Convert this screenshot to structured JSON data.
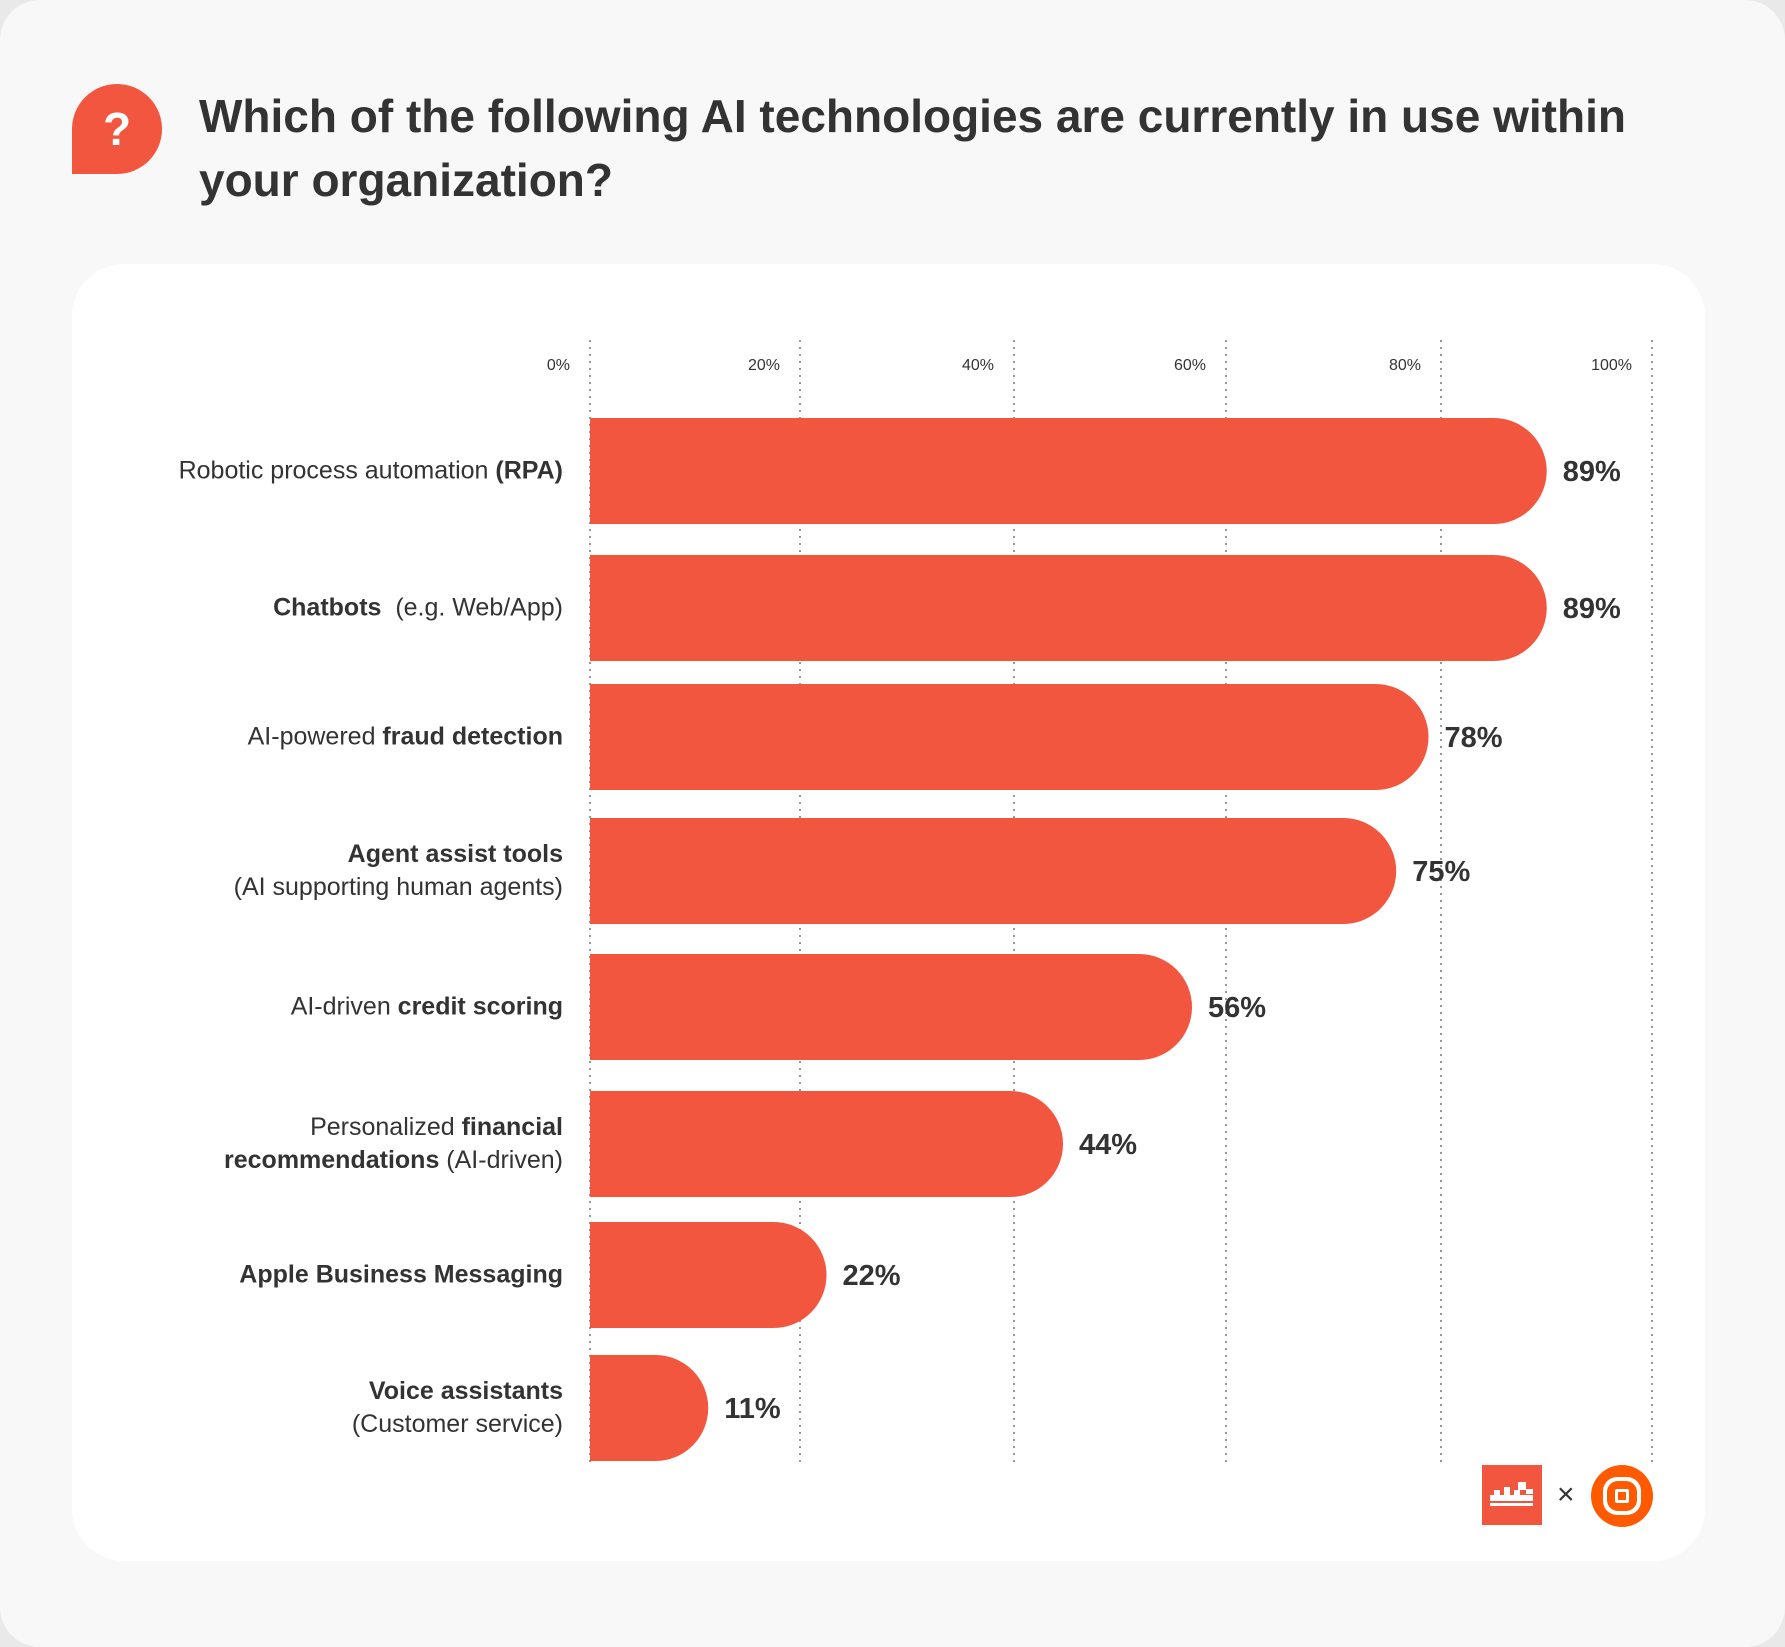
{
  "header": {
    "icon": "question-mark-bubble-icon",
    "icon_text": "?",
    "title": "Which of the following AI technologies are currently in use within your organization?"
  },
  "colors": {
    "bar": "#f2563e",
    "text": "#333333",
    "logo_secondary": "#ff5a00"
  },
  "chart_data": {
    "type": "bar",
    "orientation": "horizontal",
    "title": "Which of the following AI technologies are currently in use within your organization?",
    "xlim": [
      0,
      100
    ],
    "x_ticks": [
      "0%",
      "20%",
      "40%",
      "60%",
      "80%",
      "100%"
    ],
    "grid": "vertical dotted",
    "categories": [
      "Robotic process automation (RPA)",
      "Chatbots (e.g. Web/App)",
      "AI-powered fraud detection",
      "Agent assist tools (AI supporting human agents)",
      "AI-driven credit scoring",
      "Personalized financial recommendations (AI-driven)",
      "Apple Business Messaging",
      "Voice assistants (Customer service)"
    ],
    "values": [
      89,
      89,
      78,
      75,
      56,
      44,
      22,
      11
    ],
    "value_labels": [
      "89%",
      "89%",
      "78%",
      "75%",
      "56%",
      "44%",
      "22%",
      "11%"
    ]
  },
  "label_parts": [
    [
      {
        "t": "Robotic process automation ",
        "b": false
      },
      {
        "t": "(RPA)",
        "b": true
      }
    ],
    [
      {
        "t": "Chatbots",
        "b": true
      },
      {
        "t": "  (e.g. Web/App)",
        "b": false
      }
    ],
    [
      {
        "t": "AI-powered ",
        "b": false
      },
      {
        "t": "fraud detection",
        "b": true
      }
    ],
    [
      {
        "t": "Agent assist tools",
        "b": true
      },
      {
        "br": true
      },
      {
        "t": "(AI supporting human agents)",
        "b": false
      }
    ],
    [
      {
        "t": "AI-driven ",
        "b": false
      },
      {
        "t": "credit scoring",
        "b": true
      }
    ],
    [
      {
        "t": "Personalized ",
        "b": false
      },
      {
        "t": "financial",
        "b": true
      },
      {
        "br": true
      },
      {
        "t": "recommendations",
        "b": true
      },
      {
        "t": " (AI-driven)",
        "b": false
      }
    ],
    [
      {
        "t": "Apple Business Messaging",
        "b": true
      }
    ],
    [
      {
        "t": "Voice assistants",
        "b": true
      },
      {
        "br": true
      },
      {
        "t": "(Customer service)",
        "b": false
      }
    ]
  ],
  "footer": {
    "logos": [
      "partner-logo-icon",
      "target-logo-icon"
    ],
    "separator": "×"
  }
}
